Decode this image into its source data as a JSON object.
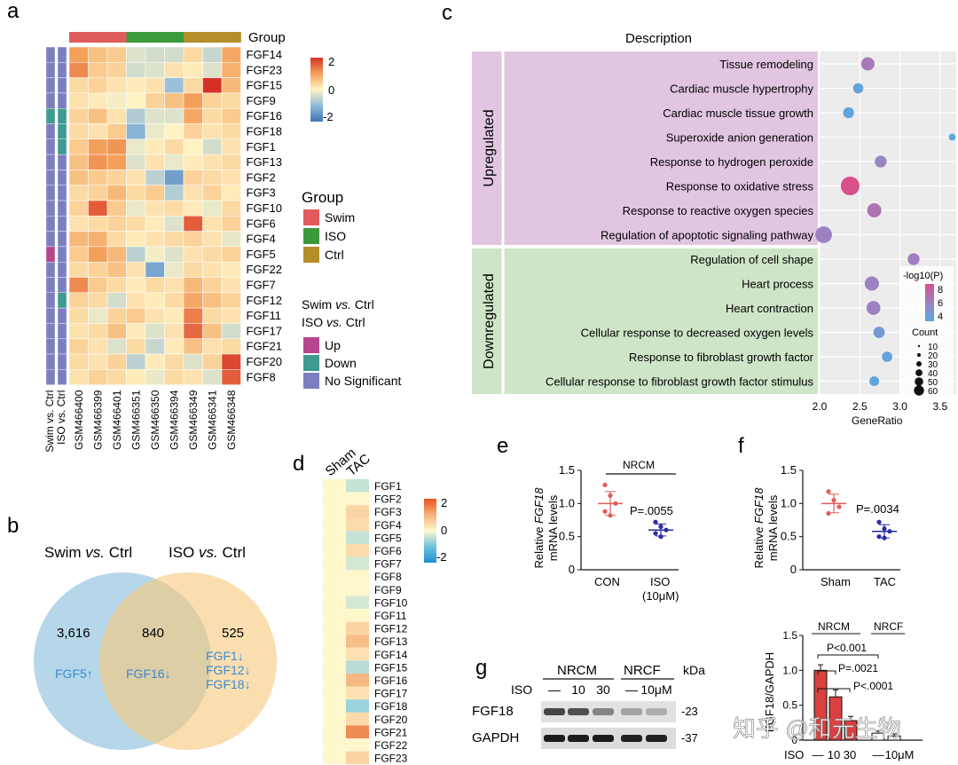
{
  "figure": {
    "panel_labels": [
      "a",
      "b",
      "c",
      "d",
      "e",
      "f",
      "g"
    ],
    "watermark": "知乎 @和元生物"
  },
  "panel_a": {
    "group_title": "Group",
    "genes": [
      "FGF14",
      "FGF23",
      "FGF15",
      "FGF9",
      "FGF16",
      "FGF18",
      "FGF1",
      "FGF13",
      "FGF2",
      "FGF3",
      "FGF10",
      "FGF6",
      "FGF4",
      "FGF5",
      "FGF22",
      "FGF7",
      "FGF12",
      "FGF11",
      "FGF17",
      "FGF21",
      "FGF20",
      "FGF8"
    ],
    "samples": [
      "GSM466400",
      "GSM466399",
      "GSM466401",
      "GSM466351",
      "GSM466350",
      "GSM466394",
      "GSM466349",
      "GSM466341",
      "GSM466348"
    ],
    "sample_groups": [
      "Swim",
      "Swim",
      "Swim",
      "ISO",
      "ISO",
      "ISO",
      "Ctrl",
      "Ctrl",
      "Ctrl"
    ],
    "annotation_columns": [
      "Swim vs. Ctrl",
      "ISO vs. Ctrl"
    ],
    "sig_swim": [
      "N",
      "N",
      "N",
      "N",
      "Dn",
      "N",
      "N",
      "N",
      "N",
      "N",
      "N",
      "N",
      "N",
      "Up",
      "N",
      "N",
      "N",
      "N",
      "N",
      "N",
      "N",
      "N"
    ],
    "sig_iso": [
      "N",
      "N",
      "N",
      "N",
      "Dn",
      "Dn",
      "Dn",
      "N",
      "N",
      "N",
      "N",
      "N",
      "N",
      "N",
      "N",
      "N",
      "Dn",
      "N",
      "N",
      "N",
      "N",
      "N"
    ],
    "zscores": [
      [
        1.0,
        0.6,
        0.5,
        -0.3,
        -0.4,
        -0.4,
        0.3,
        -0.5,
        0.9
      ],
      [
        1.2,
        0.5,
        0.4,
        -0.4,
        -0.3,
        0.2,
        0.1,
        -0.3,
        0.8
      ],
      [
        0.3,
        0.4,
        0.2,
        0.1,
        0.2,
        -0.9,
        0.3,
        2.0,
        0.7
      ],
      [
        0.2,
        0.1,
        -0.1,
        0.0,
        0.4,
        0.6,
        1.0,
        0.4,
        0.3
      ],
      [
        0.4,
        0.6,
        0.2,
        -0.7,
        -0.3,
        -0.3,
        0.9,
        0.3,
        0.5
      ],
      [
        0.3,
        0.2,
        0.5,
        -1.1,
        -0.2,
        0.0,
        0.4,
        0.2,
        0.3
      ],
      [
        0.5,
        1.0,
        1.1,
        -0.2,
        0.1,
        0.3,
        0.0,
        -0.4,
        0.2
      ],
      [
        0.6,
        1.1,
        1.0,
        -0.3,
        0.2,
        -0.2,
        0.1,
        0.2,
        0.3
      ],
      [
        0.6,
        0.5,
        0.4,
        0.2,
        -0.6,
        -1.4,
        0.4,
        0.3,
        0.2
      ],
      [
        0.3,
        0.4,
        0.7,
        0.3,
        0.5,
        -0.7,
        0.2,
        0.4,
        0.1
      ],
      [
        0.4,
        1.6,
        0.5,
        -0.2,
        0.2,
        0.3,
        0.1,
        -0.2,
        0.3
      ],
      [
        0.2,
        0.3,
        0.4,
        0.3,
        0.1,
        -0.3,
        1.6,
        0.2,
        0.4
      ],
      [
        0.7,
        0.8,
        0.3,
        0.1,
        0.2,
        0.3,
        0.4,
        0.2,
        -0.2
      ],
      [
        0.5,
        1.0,
        0.7,
        -0.6,
        -0.1,
        -0.3,
        0.2,
        0.3,
        0.4
      ],
      [
        0.3,
        0.4,
        0.6,
        0.2,
        -1.3,
        -0.2,
        0.3,
        0.2,
        0.1
      ],
      [
        1.2,
        0.5,
        0.3,
        0.1,
        0.3,
        0.2,
        0.7,
        0.4,
        0.2
      ],
      [
        0.4,
        0.3,
        -0.4,
        0.2,
        0.1,
        0.3,
        0.9,
        0.6,
        0.4
      ],
      [
        0.3,
        -0.2,
        0.4,
        0.5,
        0.2,
        0.1,
        1.3,
        0.3,
        0.2
      ],
      [
        0.2,
        0.3,
        0.6,
        0.1,
        -0.3,
        0.2,
        1.5,
        0.6,
        -0.4
      ],
      [
        0.4,
        0.2,
        -0.3,
        0.3,
        -0.5,
        0.1,
        0.6,
        0.2,
        0.3
      ],
      [
        0.3,
        0.2,
        0.4,
        -0.6,
        0.1,
        0.3,
        -0.3,
        0.4,
        1.8
      ],
      [
        0.2,
        0.4,
        0.3,
        0.1,
        -0.2,
        0.3,
        0.2,
        -0.3,
        1.6
      ]
    ],
    "colorbar_ticks": [
      "2",
      "0",
      "-2"
    ],
    "legend_group_title": "Group",
    "legend_groups": [
      {
        "name": "Swim",
        "color": "#e05c5c"
      },
      {
        "name": "ISO",
        "color": "#3b9a3b"
      },
      {
        "name": "Ctrl",
        "color": "#b28f28"
      }
    ],
    "legend_comp_1_prefix": "Swim ",
    "legend_comp_1_vs": "vs.",
    "legend_comp_1_suffix": " Ctrl",
    "legend_comp_2_prefix": "ISO ",
    "legend_comp_2_vs": "vs.",
    "legend_comp_2_suffix": " Ctrl",
    "legend_sig": [
      {
        "name": "Up",
        "color": "#b6478f"
      },
      {
        "name": "Down",
        "color": "#3f9a8f"
      },
      {
        "name": "No Significant",
        "color": "#7b7fc0"
      }
    ]
  },
  "panel_b": {
    "left_title_prefix": "Swim ",
    "left_title_vs": "vs.",
    "left_title_suffix": " Ctrl",
    "right_title_prefix": "ISO ",
    "right_title_vs": "vs.",
    "right_title_suffix": " Ctrl",
    "left_count": "3,616",
    "overlap_count": "840",
    "right_count": "525",
    "left_genes": "FGF5↑",
    "overlap_genes": "FGF16↓",
    "right_genes": [
      "FGF1↓",
      "FGF12↓",
      "FGF18↓"
    ]
  },
  "chart_data": [
    {
      "panel": "c",
      "type": "scatter",
      "title": "Description",
      "xlabel": "GeneRatio",
      "xlim": [
        2.0,
        3.7
      ],
      "xticks": [
        "2.0",
        "2.5",
        "3.0",
        "3.5"
      ],
      "group_up": "Upregulated",
      "group_down": "Downregulated",
      "legend_color_title": "-log10(P)",
      "legend_color_ticks": [
        "8",
        "6",
        "4"
      ],
      "legend_size_title": "Count",
      "legend_size_ticks": [
        "10",
        "20",
        "30",
        "40",
        "50",
        "60"
      ],
      "terms": [
        {
          "name": "Tissue remodeling",
          "x": 2.6,
          "count": 25,
          "logp": 6.5,
          "group": "up"
        },
        {
          "name": "Cardiac muscle hypertrophy",
          "x": 2.48,
          "count": 12,
          "logp": 4.0,
          "group": "up"
        },
        {
          "name": "Cardiac muscle tissue growth",
          "x": 2.36,
          "count": 14,
          "logp": 3.8,
          "group": "up"
        },
        {
          "name": "Superoxide anion generation",
          "x": 3.65,
          "count": 3,
          "logp": 3.5,
          "group": "up"
        },
        {
          "name": "Response to hydrogen peroxide",
          "x": 2.76,
          "count": 18,
          "logp": 5.8,
          "group": "up"
        },
        {
          "name": "Response to oxidative stress",
          "x": 2.38,
          "count": 60,
          "logp": 8.8,
          "group": "up"
        },
        {
          "name": "Response to reactive oxygen species",
          "x": 2.68,
          "count": 30,
          "logp": 6.8,
          "group": "up"
        },
        {
          "name": "Regulation of apoptotic signaling pathway",
          "x": 2.05,
          "count": 45,
          "logp": 6.0,
          "group": "up"
        },
        {
          "name": "Regulation of cell shape",
          "x": 3.17,
          "count": 18,
          "logp": 6.2,
          "group": "down"
        },
        {
          "name": "Heart process",
          "x": 2.65,
          "count": 30,
          "logp": 6.0,
          "group": "down"
        },
        {
          "name": "Heart contraction",
          "x": 2.67,
          "count": 28,
          "logp": 6.0,
          "group": "down"
        },
        {
          "name": "Cellular response to decreased oxygen levels",
          "x": 2.74,
          "count": 16,
          "logp": 4.5,
          "group": "down"
        },
        {
          "name": "Response to fibroblast growth factor",
          "x": 2.84,
          "count": 12,
          "logp": 3.8,
          "group": "down"
        },
        {
          "name": "Cellular response to fibroblast growth factor stimulus",
          "x": 2.68,
          "count": 10,
          "logp": 3.8,
          "group": "down"
        }
      ]
    },
    {
      "panel": "d",
      "type": "heatmap",
      "columns": [
        "Sham",
        "TAC"
      ],
      "genes": [
        "FGF1",
        "FGF2",
        "FGF3",
        "FGF4",
        "FGF5",
        "FGF6",
        "FGF7",
        "FGF8",
        "FGF9",
        "FGF10",
        "FGF11",
        "FGF12",
        "FGF13",
        "FGF14",
        "FGF15",
        "FGF16",
        "FGF17",
        "FGF18",
        "FGF20",
        "FGF21",
        "FGF22",
        "FGF23"
      ],
      "sham": [
        0,
        0,
        0,
        0,
        0,
        0,
        0,
        0,
        0,
        0,
        0,
        0,
        0,
        0,
        0,
        0,
        0,
        0,
        0,
        0,
        0,
        0
      ],
      "tac": [
        -0.4,
        0.0,
        0.5,
        0.4,
        -0.4,
        0.4,
        -0.3,
        0.0,
        0.0,
        -0.3,
        0.0,
        0.5,
        0.8,
        0.3,
        -0.5,
        0.9,
        0.3,
        -0.7,
        0.4,
        1.4,
        0.0,
        0.5
      ],
      "colorbar_ticks": [
        "2",
        "0",
        "-2"
      ]
    },
    {
      "panel": "e",
      "type": "scatter",
      "ylabel_prefix": "Relative ",
      "ylabel_gene": "FGF18",
      "ylabel_line2": "mRNA levels",
      "ylim": [
        0,
        1.5
      ],
      "yticks": [
        "0",
        "0.5",
        "1.0",
        "1.5"
      ],
      "bracket_label": "NRCM",
      "pvalue": "P=.0055",
      "groups": [
        {
          "name": "CON",
          "sub": "",
          "values": [
            1.28,
            1.12,
            1.0,
            0.88,
            0.82
          ],
          "mean": 1.0,
          "sd": 0.18,
          "color": "#e05c5c"
        },
        {
          "name": "ISO",
          "sub": "(10μM)",
          "values": [
            0.72,
            0.65,
            0.6,
            0.55,
            0.5
          ],
          "mean": 0.6,
          "sd": 0.09,
          "color": "#2a2aa8"
        }
      ]
    },
    {
      "panel": "f",
      "type": "scatter",
      "ylabel_prefix": "Relative ",
      "ylabel_gene": "FGF18",
      "ylabel_line2": "mRNA levels",
      "ylim": [
        0,
        1.5
      ],
      "yticks": [
        "0",
        "0.5",
        "1.0",
        "1.5"
      ],
      "pvalue": "P=.0034",
      "groups": [
        {
          "name": "Sham",
          "sub": "",
          "values": [
            1.18,
            1.05,
            0.95,
            0.85
          ],
          "mean": 1.0,
          "sd": 0.14,
          "color": "#e05c5c"
        },
        {
          "name": "TAC",
          "sub": "",
          "values": [
            0.72,
            0.62,
            0.58,
            0.5,
            0.48
          ],
          "mean": 0.58,
          "sd": 0.1,
          "color": "#2a2aa8"
        }
      ]
    },
    {
      "panel": "g",
      "type": "bar",
      "ylabel": "FGF18/GAPDH",
      "ylim": [
        0,
        1.5
      ],
      "yticks": [
        "0",
        "0.5",
        "1.0",
        "1.5"
      ],
      "group_labels": [
        "NRCM",
        "NRCF"
      ],
      "pvalues": [
        "P<0.001",
        "P=.0021",
        "P<.0001"
      ],
      "xlabel_prefix": "ISO",
      "xlabels": [
        "—",
        "10",
        "30",
        "—",
        "10μM"
      ],
      "values": [
        1.0,
        0.62,
        0.28,
        0.1,
        0.06
      ],
      "errors": [
        0.08,
        0.1,
        0.06,
        0.03,
        0.03
      ],
      "colors": [
        "#d94040",
        "#d94040",
        "#d94040",
        "#ffffff",
        "#ffffff"
      ]
    }
  ],
  "panel_g_blot": {
    "group_labels": [
      "NRCM",
      "NRCF"
    ],
    "kda_label": "kDa",
    "iso_label": "ISO",
    "lane_labels": [
      "—",
      "10",
      "30",
      "—",
      "10μM"
    ],
    "rows": [
      {
        "name": "FGF18",
        "mw": "-23",
        "intensities": [
          0.75,
          0.7,
          0.45,
          0.3,
          0.25
        ]
      },
      {
        "name": "GAPDH",
        "mw": "-37",
        "intensities": [
          0.95,
          0.95,
          0.95,
          0.92,
          0.92
        ]
      }
    ]
  }
}
